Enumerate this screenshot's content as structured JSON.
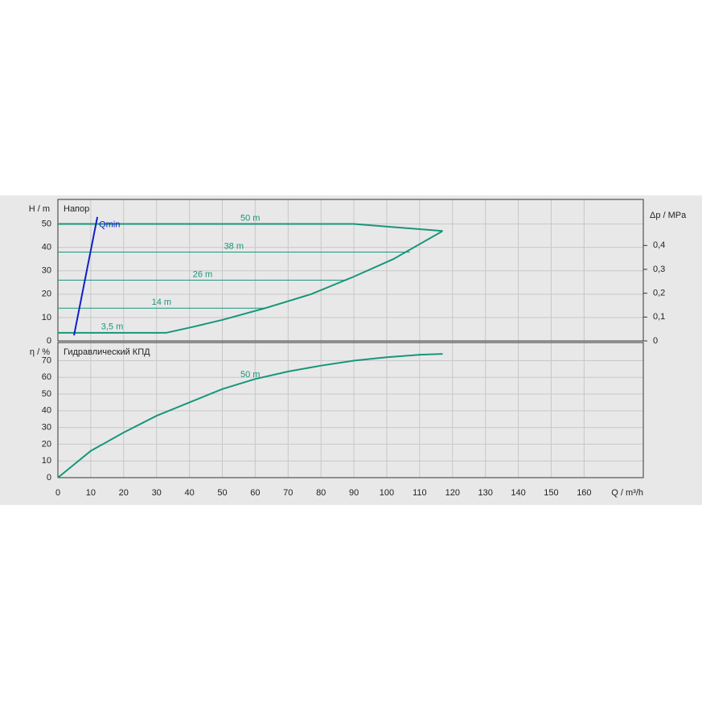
{
  "chart_data": [
    {
      "type": "line",
      "title": "Напор",
      "ylabel": "H / m",
      "y2label": "Δp / MPa",
      "xlim": [
        0,
        178
      ],
      "ylim": [
        0,
        60.5
      ],
      "y2lim": [
        0,
        0.593
      ],
      "yticks": [
        0,
        10,
        20,
        30,
        40,
        50
      ],
      "y2ticks": [
        0,
        {
          "value": 0.1,
          "label": "0,1"
        },
        {
          "value": 0.2,
          "label": "0,2"
        },
        {
          "value": 0.3,
          "label": "0,3"
        },
        {
          "value": 0.4,
          "label": "0,4"
        }
      ],
      "xticks": [
        0,
        10,
        20,
        30,
        40,
        50,
        60,
        70,
        80,
        90,
        100,
        110,
        120,
        130,
        140,
        150,
        160
      ],
      "grid": true,
      "series": [
        {
          "name": "50 m",
          "color": "#17967a",
          "line_width": 2,
          "x": [
            0,
            90,
            117
          ],
          "values": [
            50,
            50,
            47
          ]
        },
        {
          "name": "38 m",
          "color": "#17967a",
          "line_width": 1,
          "x": [
            0,
            107
          ],
          "values": [
            38,
            38
          ]
        },
        {
          "name": "26 m",
          "color": "#17967a",
          "line_width": 1,
          "x": [
            0,
            88
          ],
          "values": [
            26,
            26
          ]
        },
        {
          "name": "14 m",
          "color": "#17967a",
          "line_width": 1,
          "x": [
            0,
            63
          ],
          "values": [
            14,
            14
          ]
        },
        {
          "name": "3,5 m",
          "color": "#17967a",
          "line_width": 2,
          "x": [
            0,
            33
          ],
          "values": [
            3.5,
            3.5
          ]
        },
        {
          "color": "#17967a",
          "line_width": 2,
          "x": [
            33,
            41,
            50,
            63,
            77,
            90,
            102,
            117
          ],
          "values": [
            3.5,
            6,
            9,
            14,
            20,
            27.5,
            35,
            47
          ]
        },
        {
          "name": "Qmin",
          "color": "#1020c8",
          "line_width": 2,
          "x": [
            4.9,
            12
          ],
          "values": [
            2.4,
            53
          ]
        }
      ]
    },
    {
      "type": "line",
      "title": "Гидравлический КПД",
      "ylabel": "η / %",
      "xlabel": "Q / m³/h",
      "xlim": [
        0,
        178
      ],
      "ylim": [
        0,
        80.8
      ],
      "yticks": [
        0,
        10,
        20,
        30,
        40,
        50,
        60,
        70
      ],
      "xticks": [
        0,
        10,
        20,
        30,
        40,
        50,
        60,
        70,
        80,
        90,
        100,
        110,
        120,
        130,
        140,
        150,
        160
      ],
      "grid": true,
      "series": [
        {
          "name": "50 m",
          "color": "#17967a",
          "line_width": 2,
          "x": [
            0,
            10,
            20,
            30,
            40,
            50,
            60,
            70,
            80,
            90,
            100,
            110,
            117
          ],
          "values": [
            0,
            16,
            27,
            37,
            45,
            53,
            59,
            63.5,
            67,
            70,
            72,
            73.5,
            74
          ]
        }
      ]
    }
  ]
}
